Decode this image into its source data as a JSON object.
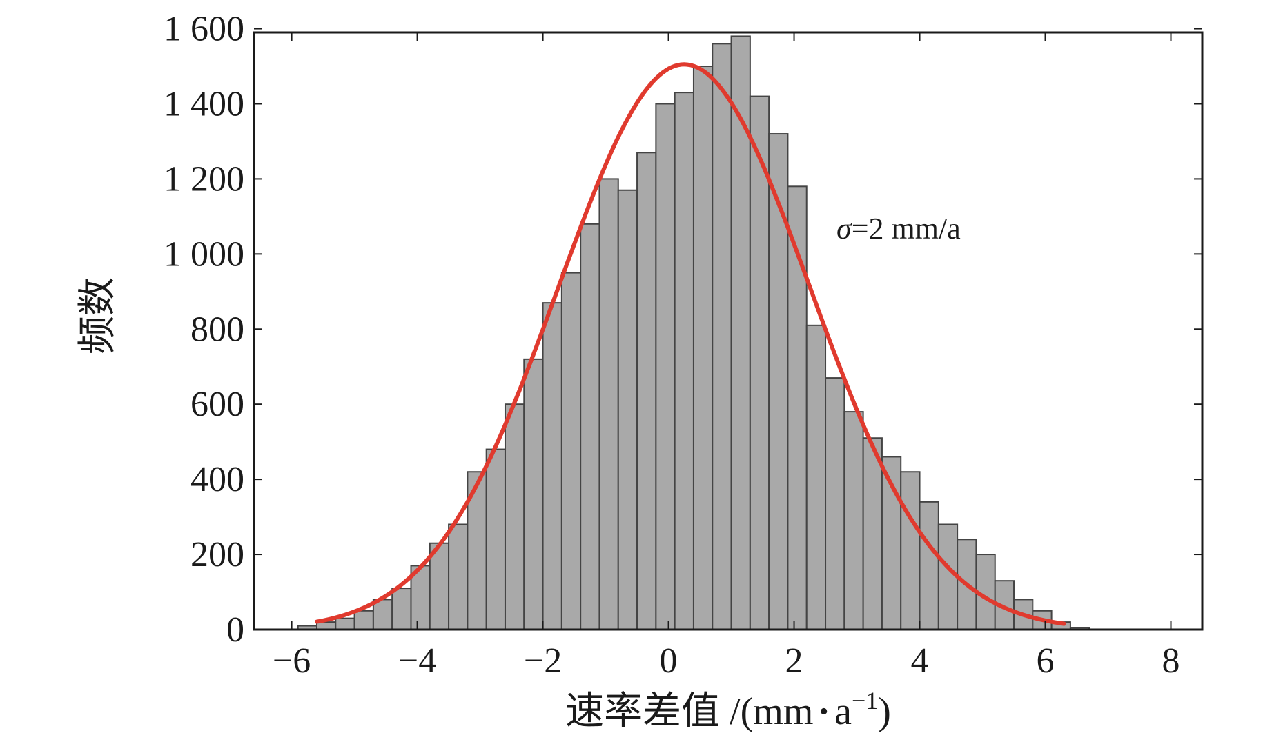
{
  "chart_data": {
    "type": "bar",
    "subtype": "histogram_with_normal_fit",
    "title": "",
    "xlabel": "速率差值",
    "xlabel_unit_prefix": "/(mm",
    "xlabel_unit_dot": "·",
    "xlabel_unit_a": "a",
    "xlabel_unit_exp": "−1",
    "xlabel_unit_close": ")",
    "ylabel": "频数",
    "xlim": [
      -6.6,
      8.5
    ],
    "ylim": [
      0,
      1590
    ],
    "x_ticks": [
      {
        "value": -6,
        "label": "−6"
      },
      {
        "value": -4,
        "label": "−4"
      },
      {
        "value": -2,
        "label": "−2"
      },
      {
        "value": 0,
        "label": "0"
      },
      {
        "value": 2,
        "label": "2"
      },
      {
        "value": 4,
        "label": "4"
      },
      {
        "value": 6,
        "label": "6"
      },
      {
        "value": 8,
        "label": "8"
      }
    ],
    "y_ticks": [
      {
        "value": 0,
        "label": "0"
      },
      {
        "value": 200,
        "label": "200"
      },
      {
        "value": 400,
        "label": "400"
      },
      {
        "value": 600,
        "label": "600"
      },
      {
        "value": 800,
        "label": "800"
      },
      {
        "value": 1000,
        "label": "1 000"
      },
      {
        "value": 1200,
        "label": "1 200"
      },
      {
        "value": 1400,
        "label": "1 400"
      },
      {
        "value": 1600,
        "label": "1 600"
      }
    ],
    "bin_width": 0.3,
    "bins_start": [
      -5.9,
      -5.6,
      -5.3,
      -5.0,
      -4.7,
      -4.4,
      -4.1,
      -3.8,
      -3.5,
      -3.2,
      -2.9,
      -2.6,
      -2.3,
      -2.0,
      -1.7,
      -1.4,
      -1.1,
      -0.8,
      -0.5,
      -0.2,
      0.1,
      0.4,
      0.7,
      1.0,
      1.3,
      1.6,
      1.9,
      2.2,
      2.5,
      2.8,
      3.1,
      3.4,
      3.7,
      4.0,
      4.3,
      4.6,
      4.9,
      5.2,
      5.5,
      5.8,
      6.1,
      6.4
    ],
    "values": [
      10,
      20,
      30,
      50,
      80,
      110,
      170,
      230,
      280,
      420,
      480,
      600,
      720,
      870,
      950,
      1080,
      1200,
      1170,
      1270,
      1400,
      1430,
      1500,
      1560,
      1580,
      1420,
      1320,
      1180,
      810,
      670,
      580,
      510,
      460,
      420,
      340,
      280,
      240,
      200,
      130,
      80,
      50,
      20,
      5
    ],
    "fit_curve": {
      "name": "normal",
      "mean": 0.25,
      "sigma": 2.0,
      "peak": 1505,
      "x_range": [
        -5.6,
        6.3
      ],
      "color": "#e03a2e"
    },
    "bar_color": "#a9a9a9",
    "bar_edge_color": "#444444",
    "annotation": {
      "symbol": "σ",
      "text": "=2 mm/a"
    },
    "grid": false,
    "legend": "none"
  }
}
